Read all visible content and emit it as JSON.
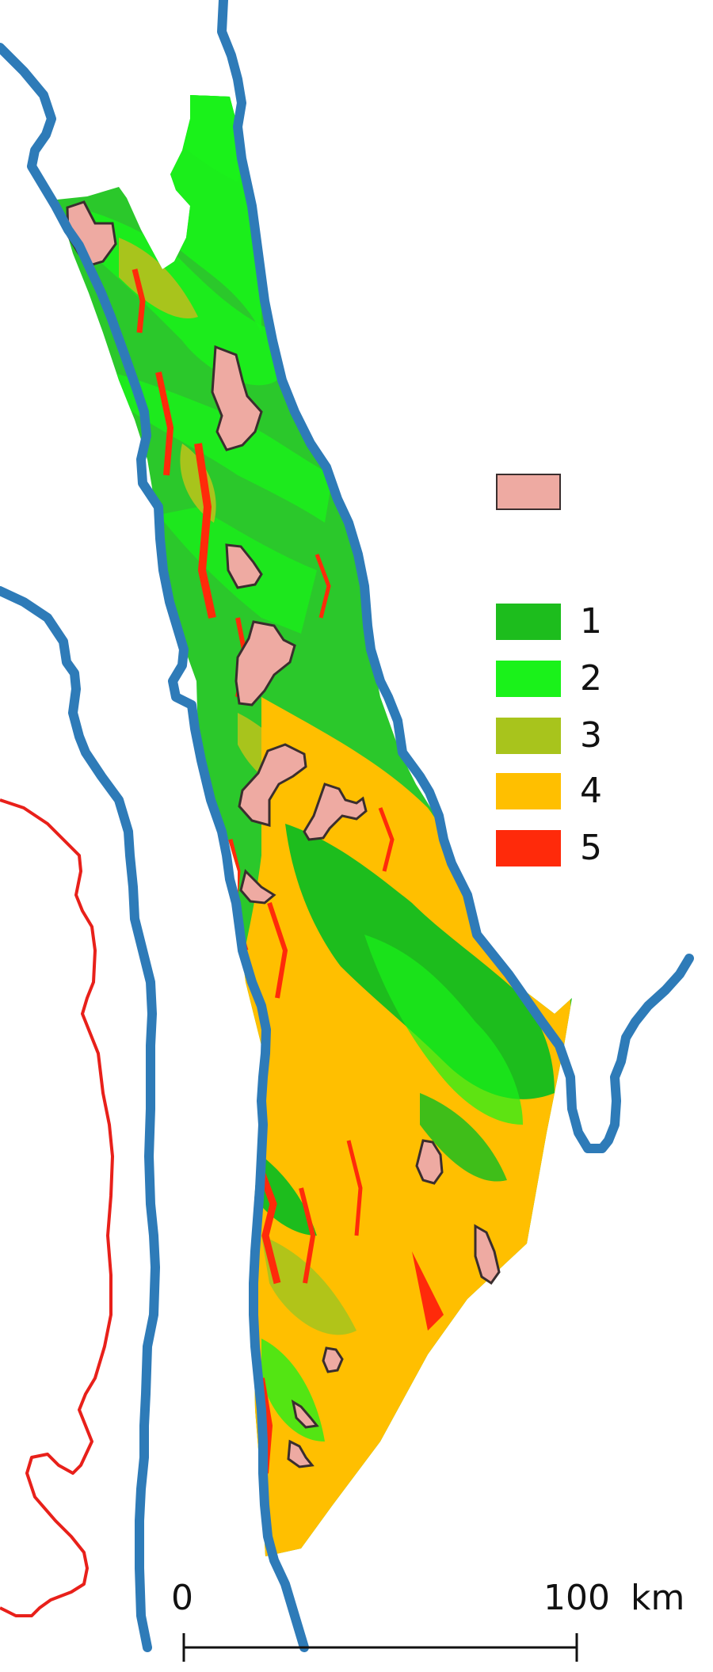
{
  "colors": {
    "river": "#2e7bb8",
    "boundary_red": "#e8201a",
    "class1": "#1dbd1d",
    "class2": "#1af21a",
    "class3": "#a8c41c",
    "class4": "#ffbf00",
    "class5": "#ff2a0a",
    "protected_area": "#eeaaa2",
    "outline": "#3a2e2e"
  },
  "legend": {
    "protected_area_label": "",
    "classes": [
      {
        "label": "1",
        "color": "#1dbd1d"
      },
      {
        "label": "2",
        "color": "#1af21a"
      },
      {
        "label": "3",
        "color": "#a8c41c"
      },
      {
        "label": "4",
        "color": "#ffbf00"
      },
      {
        "label": "5",
        "color": "#ff2a0a"
      }
    ]
  },
  "scalebar": {
    "start": "0",
    "end": "100",
    "unit": "km"
  }
}
